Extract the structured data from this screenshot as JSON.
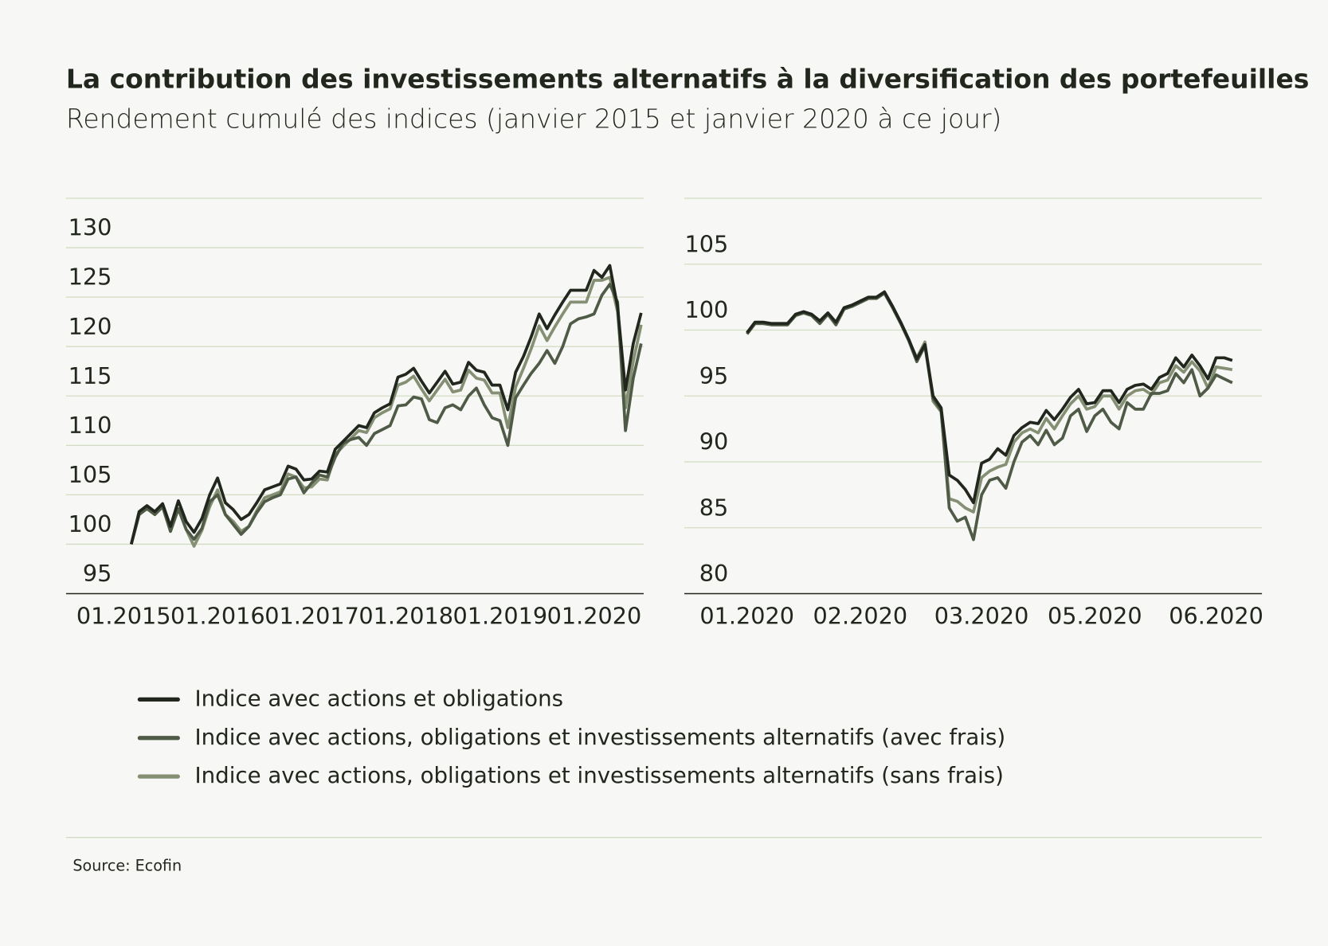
{
  "title": "La contribution des investissements alternatifs à la diversification des portefeuilles",
  "subtitle": "Rendement cumulé des indices (janvier 2015 et janvier 2020 à ce jour)",
  "source": "Source: Ecofin",
  "chart_data": [
    {
      "type": "line",
      "categories": [
        "01.2015",
        null,
        null,
        null,
        null,
        null,
        null,
        null,
        null,
        null,
        null,
        null,
        "01.2016",
        null,
        null,
        null,
        null,
        null,
        null,
        null,
        null,
        null,
        null,
        null,
        "01.2017",
        null,
        null,
        null,
        null,
        null,
        null,
        null,
        null,
        null,
        null,
        null,
        "01.2018",
        null,
        null,
        null,
        null,
        null,
        null,
        null,
        null,
        null,
        null,
        null,
        "01.2019",
        null,
        null,
        null,
        null,
        null,
        null,
        null,
        null,
        null,
        null,
        null,
        "01.2020",
        null,
        null,
        null,
        null,
        null
      ],
      "ylim": [
        95,
        135
      ],
      "yticks": [
        95,
        100,
        105,
        110,
        115,
        120,
        125,
        130
      ],
      "grid": true,
      "series": [
        {
          "name": "Indice avec actions et obligations",
          "color": "#22271e",
          "values": [
            100,
            103.3,
            103.9,
            103.3,
            104.1,
            101.8,
            104.4,
            102.3,
            101.2,
            102.6,
            105.0,
            106.7,
            104.2,
            103.5,
            102.5,
            103.0,
            104.2,
            105.5,
            105.8,
            106.1,
            107.9,
            107.6,
            106.5,
            106.6,
            107.4,
            107.3,
            109.6,
            110.4,
            111.2,
            112.0,
            111.8,
            113.3,
            113.8,
            114.2,
            116.9,
            117.2,
            117.8,
            116.5,
            115.3,
            116.4,
            117.5,
            116.2,
            116.4,
            118.4,
            117.6,
            117.4,
            116.1,
            116.1,
            113.6,
            117.4,
            119.0,
            121.0,
            123.3,
            121.8,
            123.2,
            124.5,
            125.7,
            125.7,
            125.7,
            127.7,
            127.0,
            128.2,
            124.0,
            115.6,
            120.3,
            123.4
          ]
        },
        {
          "name": "Indice avec actions, obligations et investissements alternatifs (avec frais)",
          "color": "#4f5b47",
          "values": [
            100,
            103.0,
            103.6,
            103.0,
            103.8,
            101.3,
            103.6,
            101.5,
            100.5,
            101.6,
            104.3,
            105.0,
            103.0,
            102.0,
            101.0,
            101.8,
            103.2,
            104.3,
            104.7,
            105.0,
            106.6,
            106.8,
            105.2,
            106.2,
            107.0,
            106.8,
            108.8,
            110.2,
            110.6,
            110.8,
            110.0,
            111.2,
            111.6,
            112.0,
            114.0,
            114.1,
            114.9,
            114.7,
            112.6,
            112.3,
            113.8,
            114.1,
            113.6,
            115.0,
            115.8,
            114.1,
            112.8,
            112.5,
            110.0,
            114.8,
            116.1,
            117.3,
            118.3,
            119.6,
            118.3,
            120.0,
            122.3,
            122.8,
            123.0,
            123.3,
            125.2,
            126.3,
            124.5,
            111.5,
            116.8,
            120.3
          ]
        },
        {
          "name": "Indice avec actions, obligations et investissements alternatifs (sans frais)",
          "color": "#858f73",
          "values": [
            100,
            103.0,
            103.6,
            103.0,
            103.8,
            101.3,
            103.6,
            101.5,
            99.8,
            101.4,
            103.8,
            105.5,
            103.0,
            102.3,
            101.3,
            101.8,
            103.4,
            104.7,
            105.0,
            105.3,
            107.1,
            106.8,
            105.7,
            105.8,
            106.6,
            106.5,
            109.1,
            109.9,
            110.7,
            111.5,
            111.3,
            112.8,
            113.3,
            113.7,
            116.1,
            116.4,
            117.0,
            115.7,
            114.5,
            115.6,
            116.7,
            115.4,
            115.6,
            117.6,
            116.8,
            116.6,
            115.3,
            115.3,
            111.8,
            115.9,
            117.8,
            119.8,
            122.1,
            120.6,
            122.0,
            123.3,
            124.5,
            124.5,
            124.5,
            126.7,
            126.7,
            127.0,
            123.5,
            113.8,
            118.5,
            122.2
          ]
        }
      ]
    },
    {
      "type": "line",
      "categories": [
        "01.2020",
        null,
        null,
        null,
        null,
        null,
        null,
        null,
        null,
        null,
        null,
        null,
        null,
        null,
        "02.2020",
        null,
        null,
        null,
        null,
        null,
        null,
        null,
        null,
        null,
        null,
        null,
        null,
        null,
        null,
        "03.2020",
        null,
        null,
        null,
        null,
        null,
        null,
        null,
        null,
        null,
        null,
        null,
        null,
        null,
        "05.2020",
        null,
        null,
        null,
        null,
        null,
        null,
        null,
        null,
        null,
        null,
        null,
        null,
        null,
        null,
        "06.2020",
        null,
        null
      ],
      "ylim": [
        80,
        110
      ],
      "yticks": [
        80,
        85,
        90,
        95,
        100,
        105
      ],
      "grid": true,
      "series": [
        {
          "values": [
            99.8,
            100.6,
            100.6,
            100.5,
            100.5,
            100.5,
            101.2,
            101.4,
            101.2,
            100.7,
            101.3,
            100.6,
            101.7,
            101.9,
            102.2,
            102.5,
            102.5,
            102.9,
            101.8,
            100.6,
            99.3,
            97.8,
            98.9,
            95.0,
            94.1,
            89.0,
            88.6,
            87.9,
            86.9,
            89.9,
            90.2,
            91.0,
            90.5,
            92.0,
            92.6,
            93.0,
            92.9,
            93.9,
            93.2,
            94.0,
            94.9,
            95.5,
            94.4,
            94.5,
            95.4,
            95.4,
            94.5,
            95.5,
            95.8,
            95.9,
            95.5,
            96.4,
            96.7,
            97.9,
            97.2,
            98.1,
            97.3,
            96.3,
            97.9,
            97.9,
            97.7
          ]
        },
        {
          "values": [
            99.7,
            100.5,
            100.5,
            100.4,
            100.4,
            100.4,
            101.1,
            101.3,
            101.1,
            100.5,
            101.2,
            100.4,
            101.6,
            101.8,
            102.1,
            102.4,
            102.4,
            102.8,
            101.7,
            100.5,
            99.2,
            97.6,
            98.8,
            94.8,
            93.9,
            86.5,
            85.5,
            85.8,
            84.1,
            87.5,
            88.6,
            88.8,
            88.0,
            90.0,
            91.5,
            92.0,
            91.3,
            92.4,
            91.3,
            91.8,
            93.5,
            94.0,
            92.3,
            93.5,
            94.0,
            93.0,
            92.5,
            94.5,
            94.0,
            94.0,
            95.2,
            95.2,
            95.4,
            96.7,
            96.0,
            97.0,
            95.0,
            95.6,
            96.6,
            96.3,
            96.0
          ]
        },
        {
          "values": [
            99.7,
            100.5,
            100.5,
            100.4,
            100.4,
            100.4,
            101.1,
            101.3,
            101.1,
            100.5,
            101.2,
            100.4,
            101.6,
            101.8,
            102.1,
            102.4,
            102.4,
            102.8,
            101.7,
            100.5,
            99.2,
            97.9,
            99.1,
            94.6,
            93.8,
            87.2,
            87.0,
            86.5,
            86.2,
            88.8,
            89.3,
            89.6,
            89.8,
            91.5,
            92.2,
            92.5,
            92.2,
            93.3,
            92.5,
            93.5,
            94.4,
            95.0,
            94.0,
            94.2,
            95.0,
            95.0,
            94.0,
            95.0,
            95.4,
            95.5,
            95.1,
            96.0,
            96.2,
            97.3,
            96.8,
            97.6,
            96.9,
            95.6,
            97.2,
            97.1,
            97.0
          ]
        }
      ]
    }
  ]
}
